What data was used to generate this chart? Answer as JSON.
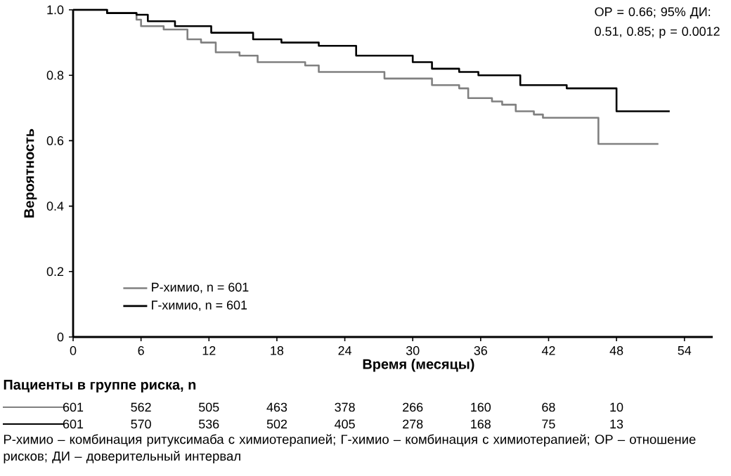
{
  "chart_data": {
    "type": "step",
    "xlabel": "Время (месяцы)",
    "ylabel": "Вероятность",
    "xlim": [
      0,
      56.5
    ],
    "ylim": [
      0,
      1.0
    ],
    "xticks": [
      0,
      6,
      12,
      18,
      24,
      30,
      36,
      42,
      48,
      54
    ],
    "yticks": [
      {
        "value": 0,
        "label": "0"
      },
      {
        "value": 0.2,
        "label": "0.2"
      },
      {
        "value": 0.4,
        "label": "0.4"
      },
      {
        "value": 0.6,
        "label": "0.6"
      },
      {
        "value": 0.8,
        "label": "0.8"
      },
      {
        "value": 1.0,
        "label": "1.0"
      }
    ],
    "legend": "bottom left",
    "grid": false,
    "series": [
      {
        "name": "Р-химио, n = 601",
        "color": "#808080",
        "x": [
          0,
          3,
          5.6,
          6.0,
          8.0,
          10.1,
          11.3,
          12.6,
          14.7,
          16.3,
          20.5,
          21.7,
          23.4,
          26.7,
          27.5,
          29.2,
          31.7,
          34.1,
          34.9,
          37.0,
          37.9,
          39.1,
          40.7,
          41.5,
          46.4,
          51.7
        ],
        "values": [
          1.0,
          0.99,
          0.97,
          0.95,
          0.94,
          0.91,
          0.9,
          0.87,
          0.86,
          0.84,
          0.83,
          0.81,
          0.81,
          0.81,
          0.79,
          0.79,
          0.77,
          0.76,
          0.73,
          0.72,
          0.71,
          0.69,
          0.68,
          0.67,
          0.59,
          0.59
        ]
      },
      {
        "name": "Г-химио, n = 601",
        "color": "#000000",
        "x": [
          0,
          3,
          5.6,
          6.6,
          9.0,
          12.2,
          15.9,
          18.4,
          21.7,
          25.0,
          27.5,
          30.0,
          31.7,
          34.1,
          35.8,
          39.5,
          43.6,
          48.0,
          52.7
        ],
        "values": [
          1.0,
          0.99,
          0.985,
          0.965,
          0.95,
          0.93,
          0.91,
          0.9,
          0.89,
          0.86,
          0.86,
          0.84,
          0.82,
          0.81,
          0.8,
          0.77,
          0.76,
          0.69,
          0.69
        ]
      }
    ],
    "annotations": [
      "ОР = 0.66; 95% ДИ: 0.51, 0.85; p = 0.0012",
      "Пациенты в группе риска, n",
      "601",
      "562",
      "505",
      "463",
      "378",
      "266",
      "160",
      "68",
      "10",
      "601",
      "570",
      "536",
      "502",
      "405",
      "278",
      "168",
      "75",
      "13",
      "Р-химио – комбинация ритуксимаба с химиотерапией; Г-химио – комбинация с химиотерапией; ОР – отношение рисков; ДИ – доверительный интервал"
    ]
  }
}
